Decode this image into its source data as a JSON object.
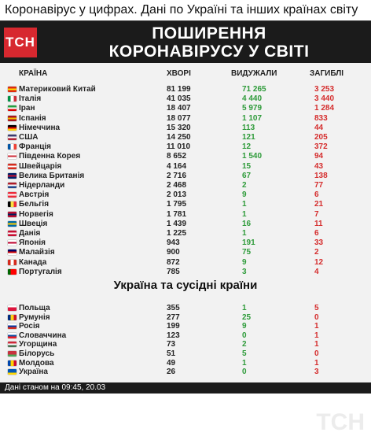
{
  "caption": "Коронавірус у цифрах. Дані по Україні та інших країнах світу",
  "logo": "ТСН",
  "banner": {
    "line1": "ПОШИРЕННЯ",
    "line2": "КОРОНАВІРУСУ У СВІТІ"
  },
  "table_headers": {
    "country": "КРАЇНА",
    "cases": "ХВОРІ",
    "recovered": "ВИДУЖАЛИ",
    "deaths": "ЗАГИБЛІ"
  },
  "colors": {
    "recovered": "#2e9b3a",
    "deaths": "#d52d2d",
    "brand": "#d7282f",
    "banner_bg": "#1b1b1b"
  },
  "world_rows": [
    {
      "country": "Материковий Китай",
      "cases": "81 199",
      "recovered": "71 265",
      "deaths": "3 253",
      "flag": [
        "#de2910",
        "#ffde00",
        "#de2910"
      ]
    },
    {
      "country": "Італія",
      "cases": "41 035",
      "recovered": "4 440",
      "deaths": "3 440",
      "flag": [
        "#009246",
        "#ffffff",
        "#ce2b37"
      ],
      "vertical": true
    },
    {
      "country": "Іран",
      "cases": "18 407",
      "recovered": "5 979",
      "deaths": "1 284",
      "flag": [
        "#239f40",
        "#ffffff",
        "#da0000"
      ]
    },
    {
      "country": "Іспанія",
      "cases": "18 077",
      "recovered": "1 107",
      "deaths": "833",
      "flag": [
        "#aa151b",
        "#f1bf00",
        "#aa151b"
      ]
    },
    {
      "country": "Німеччина",
      "cases": "15 320",
      "recovered": "113",
      "deaths": "44",
      "flag": [
        "#000000",
        "#dd0000",
        "#ffce00"
      ]
    },
    {
      "country": "США",
      "cases": "14 250",
      "recovered": "121",
      "deaths": "205",
      "flag": [
        "#3c3b6e",
        "#ffffff",
        "#b22234"
      ]
    },
    {
      "country": "Франція",
      "cases": "11 010",
      "recovered": "12",
      "deaths": "372",
      "flag": [
        "#0055a4",
        "#ffffff",
        "#ef4135"
      ],
      "vertical": true
    },
    {
      "country": "Південна Корея",
      "cases": "8 652",
      "recovered": "1 540",
      "deaths": "94",
      "flag": [
        "#ffffff",
        "#cd2e3a",
        "#ffffff"
      ]
    },
    {
      "country": "Швейцарія",
      "cases": "4 164",
      "recovered": "15",
      "deaths": "43",
      "flag": [
        "#d52b1e",
        "#ffffff",
        "#d52b1e"
      ]
    },
    {
      "country": "Велика Британія",
      "cases": "2 716",
      "recovered": "67",
      "deaths": "138",
      "flag": [
        "#012169",
        "#c8102e",
        "#012169"
      ]
    },
    {
      "country": "Нідерланди",
      "cases": "2 468",
      "recovered": "2",
      "deaths": "77",
      "flag": [
        "#ae1c28",
        "#ffffff",
        "#21468b"
      ]
    },
    {
      "country": "Австрія",
      "cases": "2 013",
      "recovered": "9",
      "deaths": "6",
      "flag": [
        "#ed2939",
        "#ffffff",
        "#ed2939"
      ]
    },
    {
      "country": "Бельгія",
      "cases": "1 795",
      "recovered": "1",
      "deaths": "21",
      "flag": [
        "#000000",
        "#fae042",
        "#ed2939"
      ],
      "vertical": true
    },
    {
      "country": "Норвегія",
      "cases": "1 781",
      "recovered": "1",
      "deaths": "7",
      "flag": [
        "#ba0c2f",
        "#00205b",
        "#ba0c2f"
      ]
    },
    {
      "country": "Швеція",
      "cases": "1 439",
      "recovered": "16",
      "deaths": "11",
      "flag": [
        "#006aa7",
        "#fecc00",
        "#006aa7"
      ]
    },
    {
      "country": "Данія",
      "cases": "1 225",
      "recovered": "1",
      "deaths": "6",
      "flag": [
        "#c60c30",
        "#ffffff",
        "#c60c30"
      ]
    },
    {
      "country": "Японія",
      "cases": "943",
      "recovered": "191",
      "deaths": "33",
      "flag": [
        "#ffffff",
        "#bc002d",
        "#ffffff"
      ]
    },
    {
      "country": "Малайзія",
      "cases": "900",
      "recovered": "75",
      "deaths": "2",
      "flag": [
        "#010066",
        "#cc0001",
        "#ffffff"
      ]
    },
    {
      "country": "Канада",
      "cases": "872",
      "recovered": "9",
      "deaths": "12",
      "flag": [
        "#d52b1e",
        "#ffffff",
        "#d52b1e"
      ],
      "vertical": true
    },
    {
      "country": "Португалія",
      "cases": "785",
      "recovered": "3",
      "deaths": "4",
      "flag": [
        "#006600",
        "#ff0000",
        "#ff0000"
      ],
      "vertical": true
    }
  ],
  "section_title": "Україна та сусідні країни",
  "neighbor_rows": [
    {
      "country": "Польща",
      "cases": "355",
      "recovered": "1",
      "deaths": "5",
      "flag": [
        "#ffffff",
        "#dc143c",
        "#dc143c"
      ]
    },
    {
      "country": "Румунія",
      "cases": "277",
      "recovered": "25",
      "deaths": "0",
      "flag": [
        "#002b7f",
        "#fcd116",
        "#ce1126"
      ],
      "vertical": true
    },
    {
      "country": "Росія",
      "cases": "199",
      "recovered": "9",
      "deaths": "1",
      "flag": [
        "#ffffff",
        "#0039a6",
        "#d52b1e"
      ]
    },
    {
      "country": "Словаччина",
      "cases": "123",
      "recovered": "0",
      "deaths": "1",
      "flag": [
        "#ffffff",
        "#0b4ea2",
        "#ee1c25"
      ]
    },
    {
      "country": "Угорщина",
      "cases": "73",
      "recovered": "2",
      "deaths": "1",
      "flag": [
        "#ce2939",
        "#ffffff",
        "#477050"
      ]
    },
    {
      "country": "Білорусь",
      "cases": "51",
      "recovered": "5",
      "deaths": "0",
      "flag": [
        "#c8313e",
        "#c8313e",
        "#4aa657"
      ]
    },
    {
      "country": "Молдова",
      "cases": "49",
      "recovered": "1",
      "deaths": "1",
      "flag": [
        "#0046ae",
        "#ffd200",
        "#cc092f"
      ],
      "vertical": true
    },
    {
      "country": "Україна",
      "cases": "26",
      "recovered": "0",
      "deaths": "3",
      "flag": [
        "#0057b7",
        "#0057b7",
        "#ffd700"
      ]
    }
  ],
  "footer": "Дані станом на 09:45, 20.03"
}
